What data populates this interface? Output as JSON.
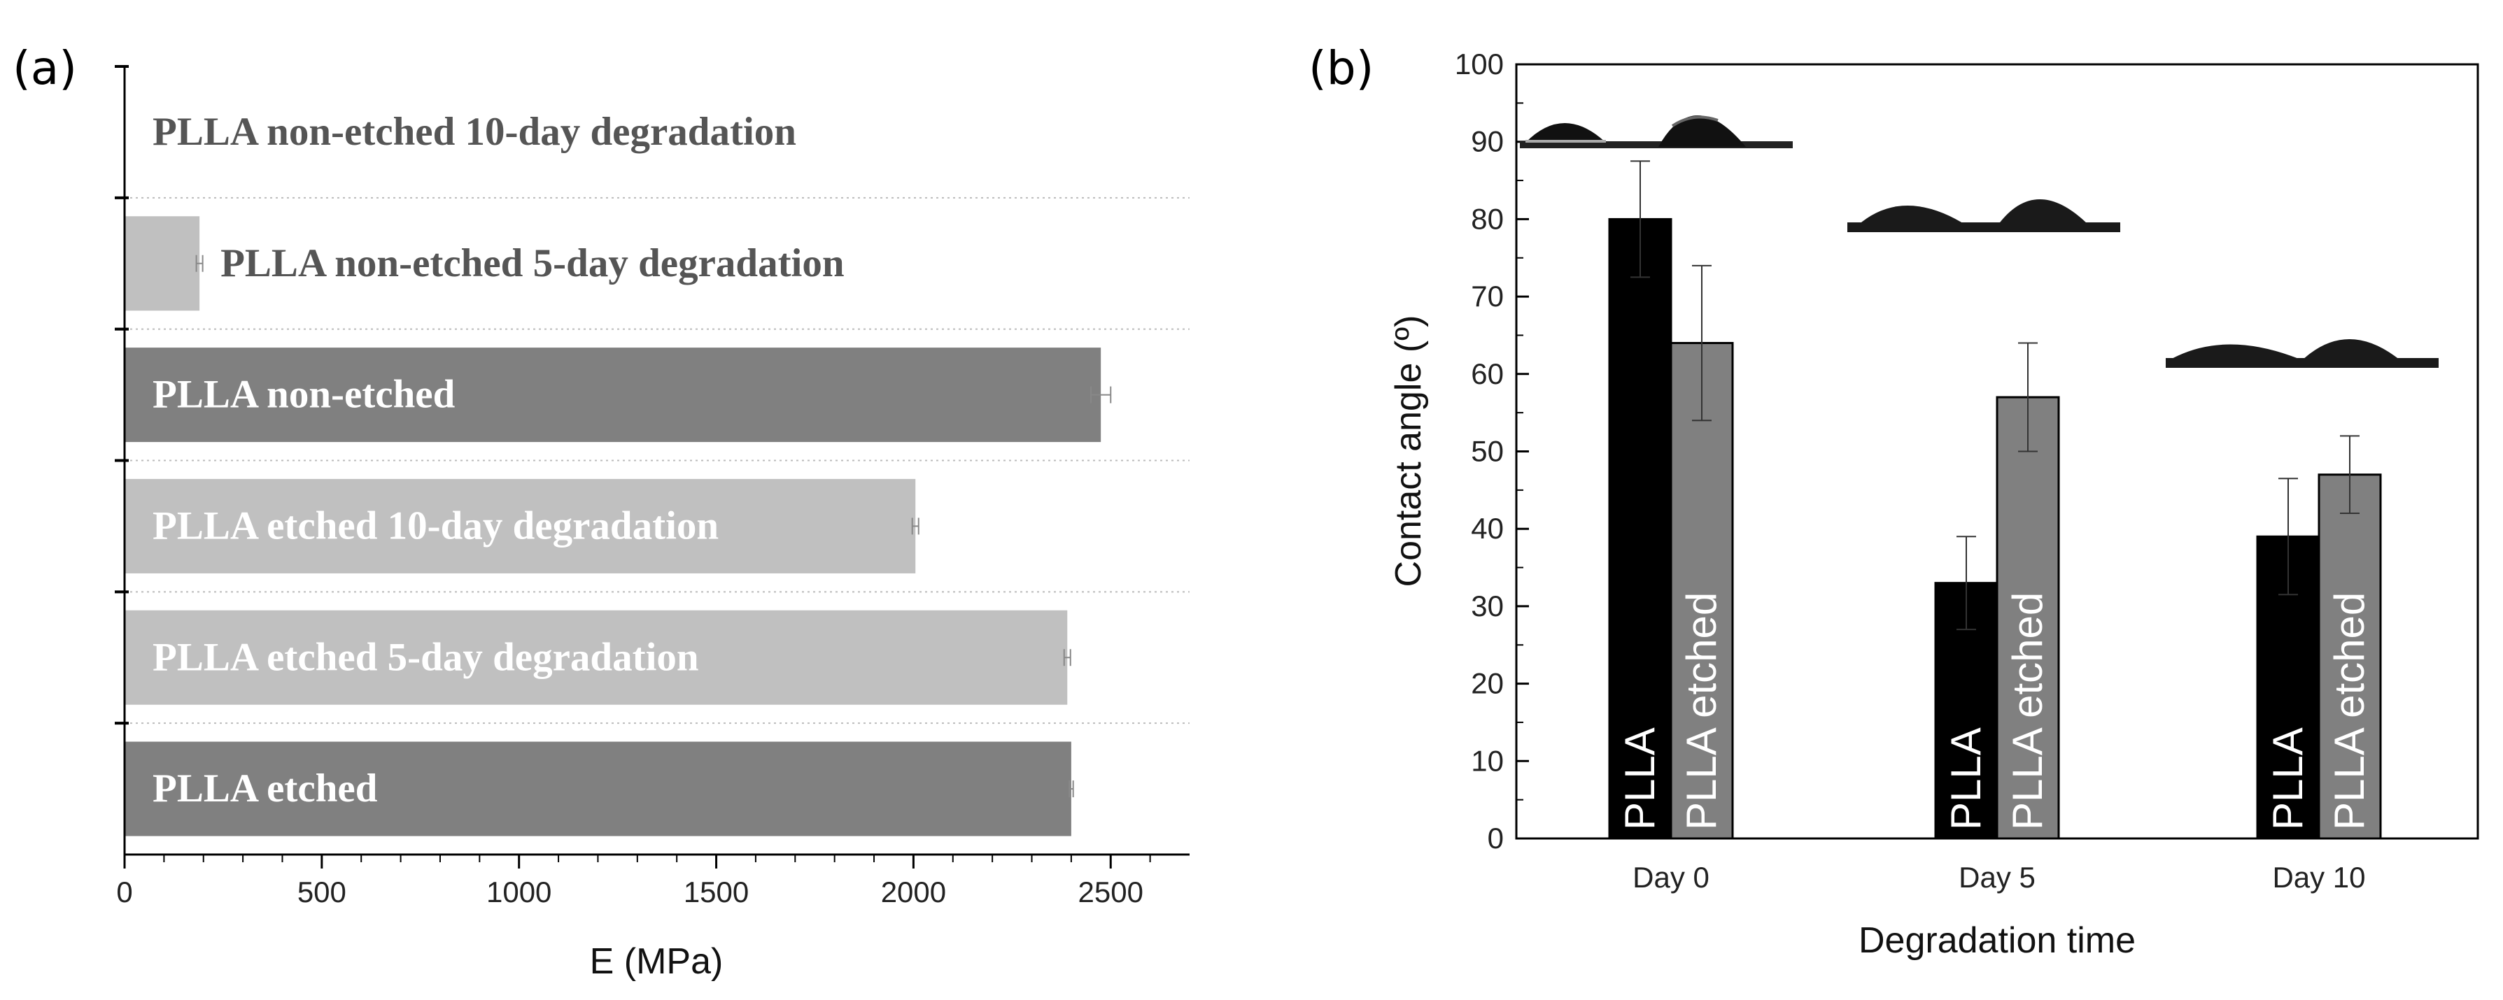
{
  "panels": {
    "a": {
      "label": "(a)"
    },
    "b": {
      "label": "(b)"
    }
  },
  "colors": {
    "dark_gray": "#808080",
    "light_gray": "#c0c0c0",
    "black": "#000000",
    "label_on_dark": "#ffffff",
    "label_on_light": "#555555"
  },
  "chart_data": [
    {
      "type": "bar",
      "orientation": "horizontal",
      "panel": "(a)",
      "title": "",
      "xlabel": "E (MPa)",
      "ylabel": "",
      "xlim": [
        0,
        2700
      ],
      "xticks": [
        0,
        500,
        1000,
        1500,
        2000,
        2500
      ],
      "gridlines": "horizontal dotted between bars",
      "categories": [
        "PLLA non-etched 10-day degradation",
        "PLLA non-etched 5-day degradation",
        "PLLA non-etched",
        "PLLA etched 10-day degradation",
        "PLLA etched 5-day degradation",
        "PLLA etched"
      ],
      "values": [
        0,
        190,
        2475,
        2005,
        2390,
        2400
      ],
      "errors": [
        0,
        8,
        25,
        8,
        8,
        5
      ],
      "bar_colors": [
        "none",
        "light_gray",
        "dark_gray",
        "light_gray",
        "light_gray",
        "dark_gray"
      ]
    },
    {
      "type": "bar",
      "panel": "(b)",
      "title": "",
      "xlabel": "Degradation time",
      "ylabel": "Contact angle (º)",
      "ylim": [
        0,
        100
      ],
      "yticks": [
        0,
        10,
        20,
        30,
        40,
        50,
        60,
        70,
        80,
        90,
        100
      ],
      "categories": [
        "Day 0",
        "Day 5",
        "Day 10"
      ],
      "series": [
        {
          "name": "PLLA",
          "color": "black",
          "values": [
            80,
            33,
            39
          ],
          "errors": [
            7.5,
            6,
            7.5
          ]
        },
        {
          "name": "PLLA etched",
          "color": "dark_gray",
          "values": [
            64,
            57,
            47
          ],
          "errors": [
            10,
            7,
            5
          ]
        }
      ],
      "bar_labels": [
        "PLLA",
        "PLLA etched"
      ],
      "annotations": "droplet contact-angle images above each day group"
    }
  ]
}
